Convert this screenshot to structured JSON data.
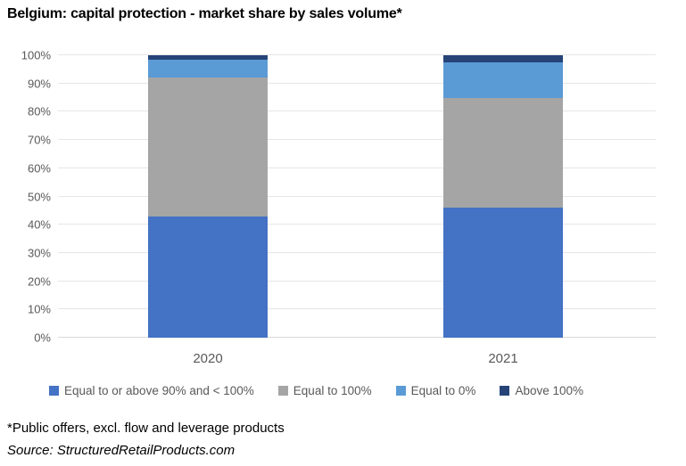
{
  "chart_data": {
    "type": "bar",
    "stacked": true,
    "title": "Belgium: capital protection - market share by sales volume*",
    "categories": [
      "2020",
      "2021"
    ],
    "series": [
      {
        "name": "Equal to or above 90% and < 100%",
        "color": "#4472C4",
        "values": [
          43,
          46
        ]
      },
      {
        "name": "Equal to 100%",
        "color": "#A5A5A5",
        "values": [
          49.2,
          39
        ]
      },
      {
        "name": "Equal to 0%",
        "color": "#5B9BD5",
        "values": [
          6.3,
          12.5
        ]
      },
      {
        "name": "Above 100%",
        "color": "#264478",
        "values": [
          1.5,
          2.5
        ]
      }
    ],
    "xlabel": "",
    "ylabel": "",
    "ylim": [
      0,
      100
    ],
    "yticks": [
      "0%",
      "10%",
      "20%",
      "30%",
      "40%",
      "50%",
      "60%",
      "70%",
      "80%",
      "90%",
      "100%"
    ],
    "grid": true,
    "legend_position": "bottom",
    "text_color": "#595959",
    "gridline_color": "#E6E6E6",
    "axisline_color": "#D9D9D9"
  },
  "footer": {
    "note": "*Public offers, excl. flow and leverage products",
    "source": "Source: StructuredRetailProducts.com"
  }
}
